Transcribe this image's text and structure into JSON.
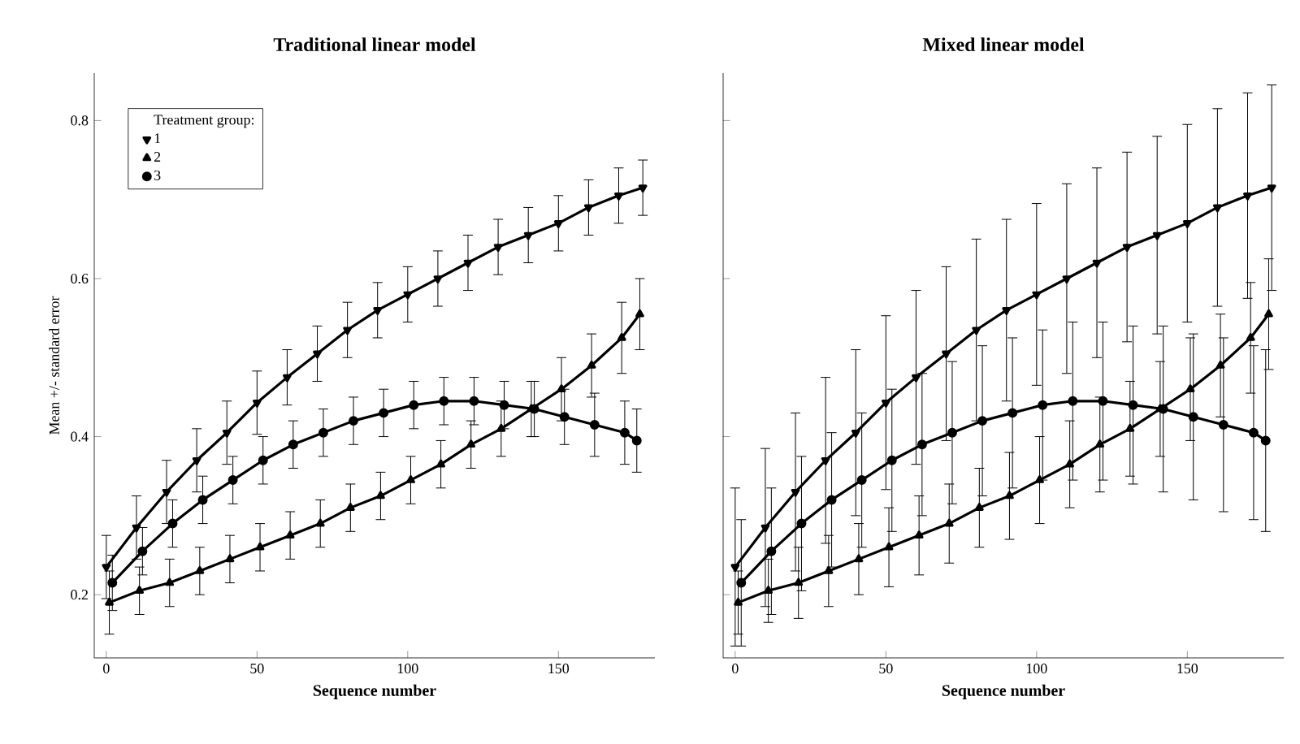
{
  "chart_data": [
    {
      "type": "line",
      "title": "Traditional linear model",
      "xlabel": "Sequence number",
      "ylabel": "Mean +/- standard error",
      "legend_title": "Treatment group:",
      "legend": "top left",
      "xlim": [
        -4,
        182
      ],
      "ylim": [
        0.12,
        0.86
      ],
      "xticks": [
        0,
        50,
        100,
        150
      ],
      "yticks": [
        0.2,
        0.4,
        0.6,
        0.8
      ],
      "series": [
        {
          "name": "1",
          "color": "#000000",
          "marker": "triangle-down",
          "x": [
            0,
            10,
            20,
            30,
            40,
            50,
            60,
            70,
            80,
            90,
            100,
            110,
            120,
            130,
            140,
            150,
            160,
            170,
            178
          ],
          "values": [
            0.235,
            0.285,
            0.33,
            0.37,
            0.405,
            0.443,
            0.475,
            0.505,
            0.535,
            0.56,
            0.58,
            0.6,
            0.62,
            0.64,
            0.655,
            0.67,
            0.69,
            0.705,
            0.715
          ],
          "errors": [
            0.04,
            0.04,
            0.04,
            0.04,
            0.04,
            0.04,
            0.035,
            0.035,
            0.035,
            0.035,
            0.035,
            0.035,
            0.035,
            0.035,
            0.035,
            0.035,
            0.035,
            0.035,
            0.035
          ]
        },
        {
          "name": "2",
          "color": "#000000",
          "marker": "triangle",
          "x": [
            1,
            11,
            21,
            31,
            41,
            51,
            61,
            71,
            81,
            91,
            101,
            111,
            121,
            131,
            141,
            151,
            161,
            171,
            177
          ],
          "values": [
            0.19,
            0.205,
            0.215,
            0.23,
            0.245,
            0.26,
            0.275,
            0.29,
            0.31,
            0.325,
            0.345,
            0.365,
            0.39,
            0.41,
            0.435,
            0.46,
            0.49,
            0.525,
            0.555
          ],
          "errors": [
            0.04,
            0.03,
            0.03,
            0.03,
            0.03,
            0.03,
            0.03,
            0.03,
            0.03,
            0.03,
            0.03,
            0.03,
            0.03,
            0.035,
            0.035,
            0.04,
            0.04,
            0.045,
            0.045
          ]
        },
        {
          "name": "3",
          "color": "#000000",
          "marker": "circle",
          "x": [
            2,
            12,
            22,
            32,
            42,
            52,
            62,
            72,
            82,
            92,
            102,
            112,
            122,
            132,
            142,
            152,
            162,
            172,
            176
          ],
          "values": [
            0.215,
            0.255,
            0.29,
            0.32,
            0.345,
            0.37,
            0.39,
            0.405,
            0.42,
            0.43,
            0.44,
            0.445,
            0.445,
            0.44,
            0.435,
            0.425,
            0.415,
            0.405,
            0.395
          ],
          "errors": [
            0.035,
            0.03,
            0.03,
            0.03,
            0.03,
            0.03,
            0.03,
            0.03,
            0.03,
            0.03,
            0.03,
            0.03,
            0.03,
            0.03,
            0.035,
            0.035,
            0.04,
            0.04,
            0.04
          ]
        }
      ]
    },
    {
      "type": "line",
      "title": "Mixed linear model",
      "xlabel": "Sequence number",
      "tick_labels": "x",
      "xlim": [
        -4,
        182
      ],
      "ylim": [
        0.12,
        0.86
      ],
      "xticks": [
        0,
        50,
        100,
        150
      ],
      "yticks": [
        0.2,
        0.4,
        0.6,
        0.8
      ],
      "series": [
        {
          "color": "#000000",
          "marker": "triangle-down",
          "x": [
            0,
            10,
            20,
            30,
            40,
            50,
            60,
            70,
            80,
            90,
            100,
            110,
            120,
            130,
            140,
            150,
            160,
            170,
            178
          ],
          "values": [
            0.235,
            0.285,
            0.33,
            0.37,
            0.405,
            0.443,
            0.475,
            0.505,
            0.535,
            0.56,
            0.58,
            0.6,
            0.62,
            0.64,
            0.655,
            0.67,
            0.69,
            0.705,
            0.715
          ],
          "errors": [
            0.1,
            0.1,
            0.1,
            0.105,
            0.105,
            0.11,
            0.11,
            0.11,
            0.115,
            0.115,
            0.115,
            0.12,
            0.12,
            0.12,
            0.125,
            0.125,
            0.125,
            0.13,
            0.13
          ]
        },
        {
          "color": "#000000",
          "marker": "triangle",
          "x": [
            1,
            11,
            21,
            31,
            41,
            51,
            61,
            71,
            81,
            91,
            101,
            111,
            121,
            131,
            141,
            151,
            161,
            171,
            177
          ],
          "values": [
            0.19,
            0.205,
            0.215,
            0.23,
            0.245,
            0.26,
            0.275,
            0.29,
            0.31,
            0.325,
            0.345,
            0.365,
            0.39,
            0.41,
            0.435,
            0.46,
            0.49,
            0.525,
            0.555
          ],
          "errors": [
            0.04,
            0.04,
            0.045,
            0.045,
            0.045,
            0.05,
            0.05,
            0.05,
            0.05,
            0.055,
            0.055,
            0.055,
            0.06,
            0.06,
            0.06,
            0.065,
            0.065,
            0.07,
            0.07
          ]
        },
        {
          "color": "#000000",
          "marker": "circle",
          "x": [
            2,
            12,
            22,
            32,
            42,
            52,
            62,
            72,
            82,
            92,
            102,
            112,
            122,
            132,
            142,
            152,
            162,
            172,
            176
          ],
          "values": [
            0.215,
            0.255,
            0.29,
            0.32,
            0.345,
            0.37,
            0.39,
            0.405,
            0.42,
            0.43,
            0.44,
            0.445,
            0.445,
            0.44,
            0.435,
            0.425,
            0.415,
            0.405,
            0.395
          ],
          "errors": [
            0.08,
            0.08,
            0.085,
            0.085,
            0.085,
            0.09,
            0.09,
            0.09,
            0.095,
            0.095,
            0.095,
            0.1,
            0.1,
            0.1,
            0.105,
            0.105,
            0.11,
            0.11,
            0.115
          ]
        }
      ]
    }
  ]
}
